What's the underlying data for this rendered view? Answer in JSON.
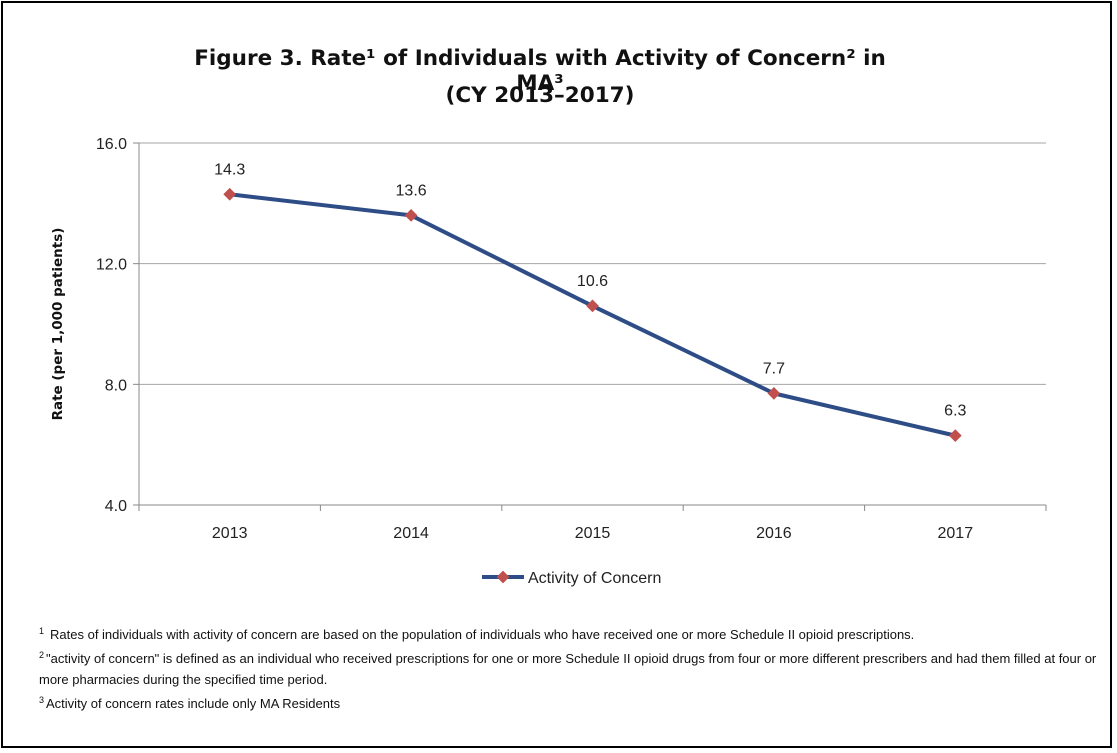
{
  "chart_data": {
    "type": "line",
    "title_line1": "Figure 3. Rate¹ of Individuals with Activity of Concern² in MA³",
    "title_line2": "(CY 2013–2017)",
    "xlabel": "",
    "ylabel": "Rate (per 1,000 patients)",
    "ylim": [
      4.0,
      16.0
    ],
    "yticks": [
      "4.0",
      "8.0",
      "12.0",
      "16.0"
    ],
    "categories": [
      "2013",
      "2014",
      "2015",
      "2016",
      "2017"
    ],
    "series": [
      {
        "name": "Activity of Concern",
        "values": [
          14.3,
          13.6,
          10.6,
          7.7,
          6.3
        ],
        "labels": [
          "14.3",
          "13.6",
          "10.6",
          "7.7",
          "6.3"
        ]
      }
    ],
    "grid": true,
    "legend_position": "bottom",
    "colors": {
      "line": "#2e4d86",
      "marker": "#c0504d",
      "grid": "#a6a6a6",
      "axis": "#888888"
    }
  },
  "footnotes": [
    {
      "num": "1",
      "text": "Rates of individuals with activity of concern are based on the population of individuals who have received one or more Schedule II opioid prescriptions."
    },
    {
      "num": "2",
      "text": "\"activity of concern\"  is defined as an individual  who received prescriptions for one or more  Schedule II opioid drugs from four or more different prescribers and had them filled at four or more pharmacies  during the  specified time period."
    },
    {
      "num": "3",
      "text": "Activity of concern rates include  only MA Residents"
    }
  ]
}
